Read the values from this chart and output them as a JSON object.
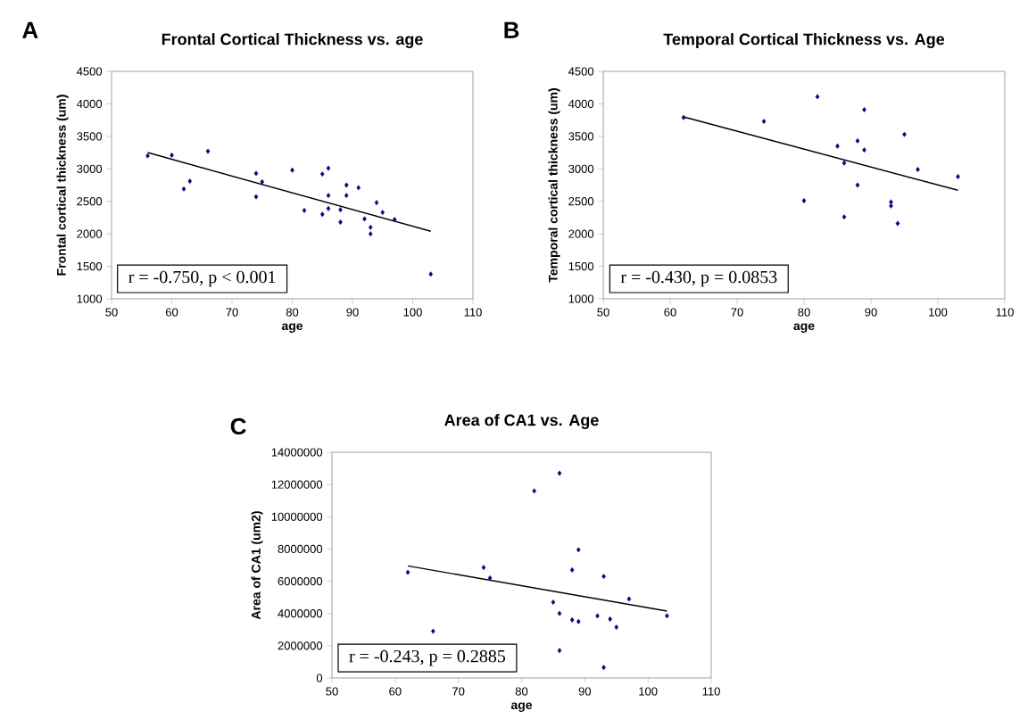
{
  "chart_data": [
    {
      "type": "scatter",
      "title": "Frontal Cortical Thickness vs. age",
      "xlabel": "age",
      "ylabel": "Frontal cortical thickness (um)",
      "xlim": [
        50,
        110
      ],
      "xticks": [
        50,
        60,
        70,
        80,
        90,
        100,
        110
      ],
      "ylim": [
        1000,
        4500
      ],
      "yticks": [
        1000,
        1500,
        2000,
        2500,
        3000,
        3500,
        4000,
        4500
      ],
      "marker": "diamond",
      "series": [
        {
          "color": "#000080",
          "x": [
            56,
            60,
            62,
            63,
            66,
            74,
            74,
            75,
            80,
            82,
            85,
            85,
            86,
            86,
            86,
            88,
            88,
            89,
            89,
            91,
            92,
            93,
            93,
            94,
            95,
            97,
            103
          ],
          "values": [
            3200,
            3210,
            2690,
            2810,
            3270,
            2930,
            2570,
            2800,
            2980,
            2360,
            2920,
            2300,
            3010,
            2590,
            2390,
            2370,
            2180,
            2750,
            2590,
            2710,
            2230,
            2100,
            2000,
            2480,
            2330,
            2220,
            1380
          ]
        },
        {
          "type": "line",
          "color": "#000000",
          "marker": "none",
          "x": [
            56,
            103
          ],
          "values": [
            3250,
            2040
          ]
        }
      ],
      "annotations": [
        "A",
        "r = -0.750, p < 0.001"
      ]
    },
    {
      "type": "scatter",
      "title": "Temporal Cortical Thickness vs. Age",
      "xlabel": "age",
      "ylabel": "Temporal cortical thickness (um)",
      "xlim": [
        50,
        110
      ],
      "xticks": [
        50,
        60,
        70,
        80,
        90,
        100,
        110
      ],
      "ylim": [
        1000,
        4500
      ],
      "yticks": [
        1000,
        1500,
        2000,
        2500,
        3000,
        3500,
        4000,
        4500
      ],
      "marker": "diamond",
      "series": [
        {
          "color": "#000080",
          "x": [
            62,
            74,
            82,
            80,
            85,
            86,
            86,
            88,
            88,
            89,
            89,
            93,
            93,
            94,
            95,
            97,
            103
          ],
          "values": [
            3790,
            3730,
            4110,
            2510,
            3350,
            3090,
            2260,
            3430,
            2750,
            3910,
            3290,
            2490,
            2430,
            2160,
            3530,
            2990,
            2880
          ]
        },
        {
          "type": "line",
          "color": "#000000",
          "marker": "none",
          "x": [
            62,
            103
          ],
          "values": [
            3800,
            2670
          ]
        }
      ],
      "annotations": [
        "B",
        "r = -0.430, p = 0.0853"
      ]
    },
    {
      "type": "scatter",
      "title": "Area of CA1 vs. Age",
      "xlabel": "age",
      "ylabel": "Area of CA1 (um2)",
      "xlim": [
        50,
        110
      ],
      "xticks": [
        50,
        60,
        70,
        80,
        90,
        100,
        110
      ],
      "ylim": [
        0,
        14000000
      ],
      "yticks": [
        0,
        2000000,
        4000000,
        6000000,
        8000000,
        10000000,
        12000000,
        14000000
      ],
      "marker": "diamond",
      "series": [
        {
          "color": "#000080",
          "x": [
            62,
            66,
            74,
            75,
            82,
            85,
            86,
            86,
            86,
            88,
            88,
            89,
            89,
            92,
            93,
            93,
            94,
            95,
            97,
            103
          ],
          "values": [
            6550000,
            2900000,
            6850000,
            6200000,
            11600000,
            4700000,
            12700000,
            4000000,
            1700000,
            6700000,
            3600000,
            7950000,
            3500000,
            3850000,
            6300000,
            650000,
            3650000,
            3150000,
            4900000,
            3850000
          ]
        },
        {
          "type": "line",
          "color": "#000000",
          "marker": "none",
          "x": [
            62,
            103
          ],
          "values": [
            6950000,
            4150000
          ]
        }
      ],
      "annotations": [
        "C",
        "r = -0.243, p = 0.2885"
      ]
    }
  ]
}
